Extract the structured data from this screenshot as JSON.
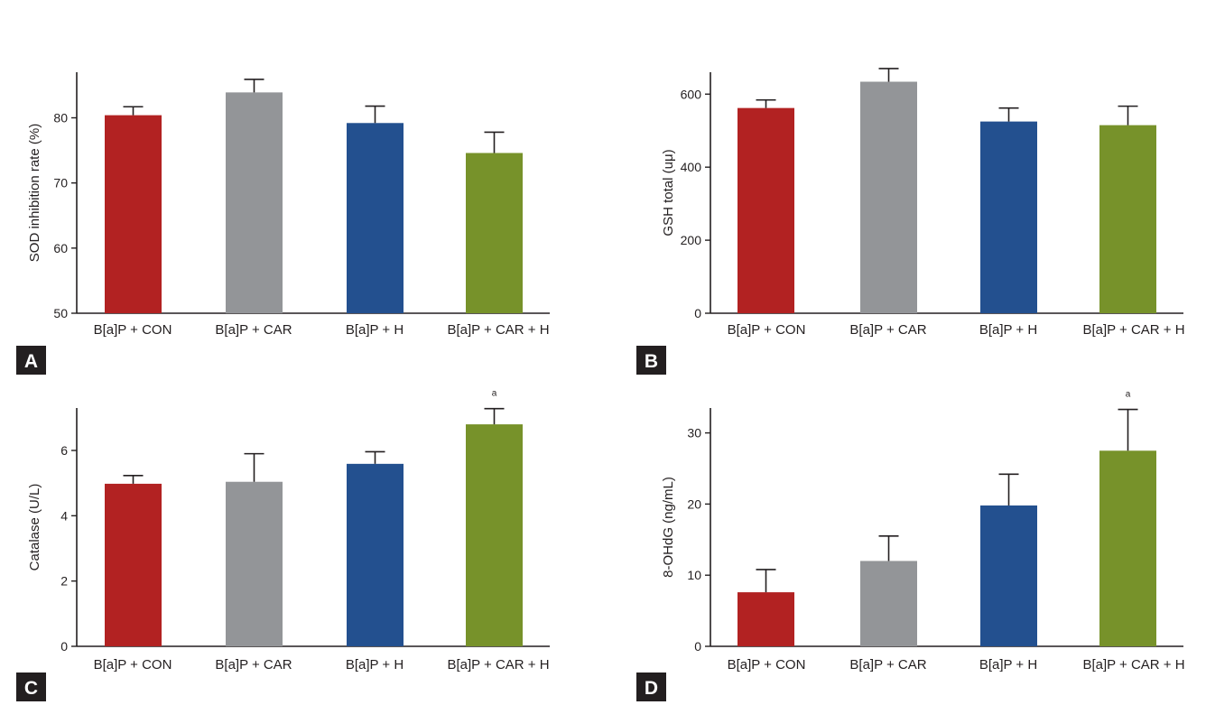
{
  "colors": {
    "bars": [
      "#b22222",
      "#939598",
      "#23508f",
      "#77922a"
    ],
    "axis": "#231f20",
    "panel_badge": "#231f20",
    "badge_text": "#ffffff"
  },
  "chart_data": [
    {
      "type": "bar",
      "panel": "A",
      "title": "",
      "xlabel": "",
      "ylabel": "SOD inhibition rate (%)",
      "categories": [
        "B[a]P + CON",
        "B[a]P + CAR",
        "B[a]P + H",
        "B[a]P + CAR + H"
      ],
      "values": [
        80.4,
        83.9,
        79.2,
        74.6
      ],
      "errors": [
        1.3,
        2.0,
        2.6,
        3.2
      ],
      "annotations": [
        "",
        "",
        "",
        ""
      ],
      "ylim": [
        50,
        87
      ],
      "yticks": [
        50,
        60,
        70,
        80
      ],
      "ytick_labels": [
        "50",
        "60",
        "70",
        "80"
      ],
      "grid": false
    },
    {
      "type": "bar",
      "panel": "B",
      "title": "",
      "xlabel": "",
      "ylabel": "GSH total (uμ)",
      "categories": [
        "B[a]P + CON",
        "B[a]P + CAR",
        "B[a]P + H",
        "B[a]P + CAR + H"
      ],
      "values": [
        562,
        634,
        525,
        515
      ],
      "errors": [
        22,
        36,
        37,
        52
      ],
      "annotations": [
        "",
        "",
        "",
        ""
      ],
      "ylim": [
        0,
        660
      ],
      "yticks": [
        0,
        200,
        400,
        600
      ],
      "ytick_labels": [
        "0",
        "200",
        "400",
        "600"
      ],
      "grid": false
    },
    {
      "type": "bar",
      "panel": "C",
      "title": "",
      "xlabel": "",
      "ylabel": "Catalase (U/L)",
      "categories": [
        "B[a]P + CON",
        "B[a]P + CAR",
        "B[a]P + H",
        "B[a]P + CAR + H"
      ],
      "values": [
        4.98,
        5.04,
        5.59,
        6.8
      ],
      "errors": [
        0.25,
        0.86,
        0.37,
        0.48
      ],
      "annotations": [
        "",
        "",
        "",
        "a"
      ],
      "ylim": [
        0,
        7.3
      ],
      "yticks": [
        0,
        2,
        4,
        6
      ],
      "ytick_labels": [
        "0",
        "2",
        "4",
        "6"
      ],
      "grid": false
    },
    {
      "type": "bar",
      "panel": "D",
      "title": "",
      "xlabel": "",
      "ylabel": "8-OHdG (ng/mL)",
      "categories": [
        "B[a]P + CON",
        "B[a]P + CAR",
        "B[a]P + H",
        "B[a]P + CAR + H"
      ],
      "values": [
        7.6,
        12.0,
        19.8,
        27.5
      ],
      "errors": [
        3.2,
        3.5,
        4.4,
        5.8
      ],
      "annotations": [
        "",
        "",
        "",
        "a"
      ],
      "ylim": [
        0,
        33.5
      ],
      "yticks": [
        0,
        10,
        20,
        30
      ],
      "ytick_labels": [
        "0",
        "10",
        "20",
        "30"
      ],
      "grid": false
    }
  ]
}
